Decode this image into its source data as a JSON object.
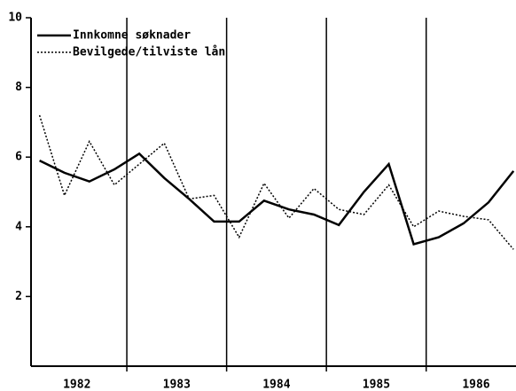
{
  "chart_data": {
    "type": "line",
    "x": [
      1982.125,
      1982.375,
      1982.625,
      1982.875,
      1983.125,
      1983.375,
      1983.625,
      1983.875,
      1984.125,
      1984.375,
      1984.625,
      1984.875,
      1985.125,
      1985.375,
      1985.625,
      1985.875,
      1986.125,
      1986.375,
      1986.625,
      1986.875
    ],
    "series": [
      {
        "name": "Innkomne søknader",
        "color": "#000000",
        "dash": "solid",
        "values": [
          5.9,
          5.55,
          5.3,
          5.65,
          6.1,
          5.4,
          4.8,
          4.15,
          4.15,
          4.75,
          4.5,
          4.35,
          4.05,
          5.0,
          5.8,
          3.5,
          3.7,
          4.1,
          4.7,
          5.6
        ]
      },
      {
        "name": "Bevilgede/tilviste lån",
        "color": "#000000",
        "dash": "dotted",
        "values": [
          7.2,
          4.9,
          6.45,
          5.2,
          5.8,
          6.4,
          4.8,
          4.9,
          3.7,
          5.25,
          4.25,
          5.1,
          4.5,
          4.35,
          5.2,
          4.0,
          4.45,
          4.3,
          4.2,
          3.35
        ]
      }
    ],
    "xlim": [
      1982.04,
      1986.9
    ],
    "xticks": [
      {
        "value": 1982.5,
        "label": "1982"
      },
      {
        "value": 1983.5,
        "label": "1983"
      },
      {
        "value": 1984.5,
        "label": "1984"
      },
      {
        "value": 1985.5,
        "label": "1985"
      },
      {
        "value": 1986.5,
        "label": "1986"
      }
    ],
    "vlines": [
      1983,
      1984,
      1985,
      1986
    ],
    "ylim": [
      0,
      10
    ],
    "yticks": [
      2,
      4,
      6,
      8,
      10
    ],
    "legend": "upper left"
  }
}
